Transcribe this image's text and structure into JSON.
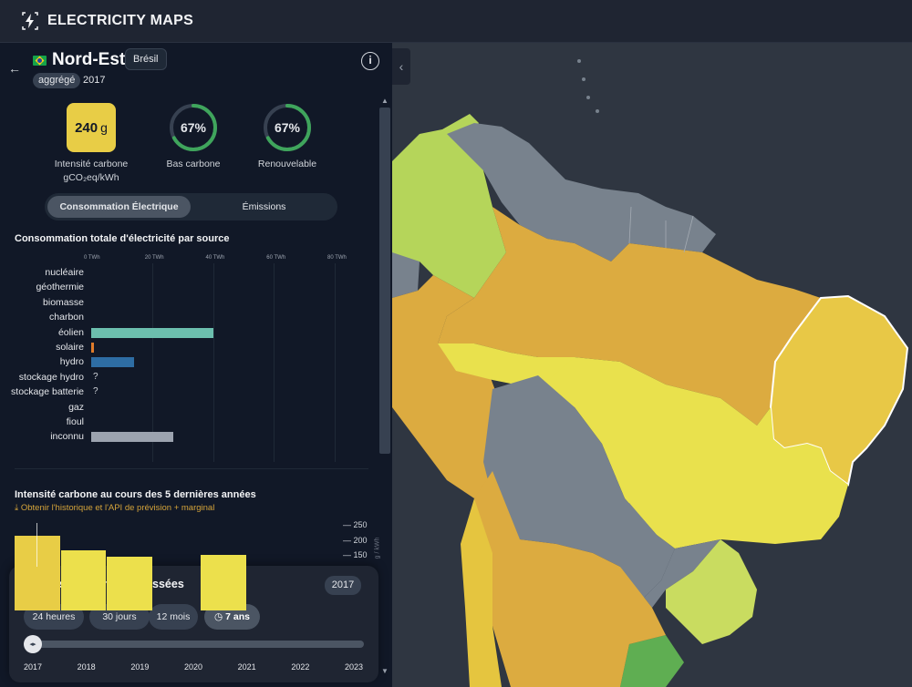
{
  "header": {
    "brand": "ELECTRICITY MAPS",
    "logo_icon": "lightning-icon"
  },
  "zone": {
    "name": "Nord-Est",
    "country": "Brésil",
    "aggregate_badge": "aggrégé",
    "year": "2017",
    "flag_icon": "brazil-flag-icon"
  },
  "metrics": {
    "intensity_value": "240",
    "intensity_unit": "g",
    "intensity_label1": "Intensité carbone",
    "intensity_label2": "gCO₂eq/kWh",
    "low_carbon_value": "67%",
    "low_carbon_label": "Bas carbone",
    "low_carbon_fraction": 0.67,
    "renewable_value": "67%",
    "renewable_label": "Renouvelable",
    "renewable_fraction": 0.67
  },
  "toggle": {
    "consumption": "Consommation Électrique",
    "emissions": "Émissions"
  },
  "source_chart": {
    "title": "Consommation totale d'électricité par source",
    "axis_ticks": [
      "0 TWh",
      "20 TWh",
      "40 TWh",
      "60 TWh",
      "80 TWh"
    ]
  },
  "history": {
    "title": "Intensité carbone au cours des 5 dernières années",
    "link": "Obtenir l'historique et l'API de prévision + marginal",
    "y_ticks": [
      "250",
      "200",
      "150"
    ],
    "unit": "g / kWh"
  },
  "time_controller": {
    "title": "Afficher les données passées",
    "selected_year": "2017",
    "options": [
      "24 heures",
      "30 jours",
      "12 mois",
      "7 ans"
    ],
    "active_option": "7 ans",
    "years": [
      "2017",
      "2018",
      "2019",
      "2020",
      "2021",
      "2022",
      "2023"
    ],
    "slider_position": 0
  },
  "colors": {
    "wind": "#6cbfae",
    "solar": "#e07b2a",
    "hydro": "#2e6da4",
    "unknown": "#9ca3af",
    "intensity_yellow": "#e8cd46",
    "ring_green": "#3fa55c"
  },
  "chart_data": [
    {
      "type": "bar",
      "orientation": "horizontal",
      "title": "Consommation totale d'électricité par source",
      "unit": "TWh",
      "xlim": [
        0,
        85
      ],
      "categories": [
        "nucléaire",
        "géothermie",
        "biomasse",
        "charbon",
        "éolien",
        "solaire",
        "hydro",
        "stockage hydro",
        "stockage batterie",
        "gaz",
        "fioul",
        "inconnu"
      ],
      "values": [
        0,
        0,
        0,
        0,
        40,
        1,
        14,
        null,
        null,
        0,
        0,
        27
      ],
      "value_labels": [
        "",
        "",
        "",
        "",
        "",
        "",
        "",
        "?",
        "?",
        "",
        "",
        ""
      ]
    },
    {
      "type": "bar",
      "title": "Intensité carbone au cours des 5 dernières années",
      "unit": "g / kWh",
      "categories": [
        "2017",
        "2018",
        "2019",
        "2020",
        "2021"
      ],
      "values": [
        240,
        195,
        175,
        0,
        180
      ],
      "ylim": [
        0,
        250
      ]
    }
  ]
}
